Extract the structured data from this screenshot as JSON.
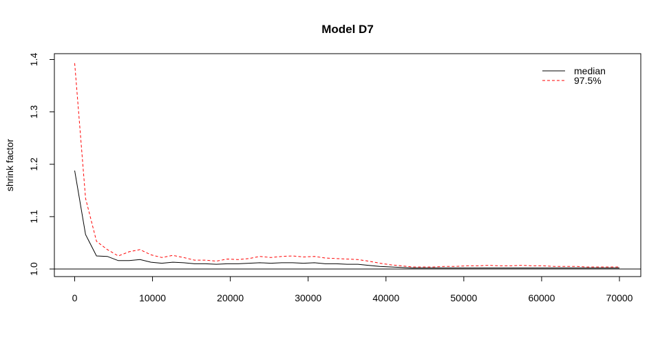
{
  "chart_data": {
    "type": "line",
    "title": "Model D7",
    "xlabel": "",
    "ylabel": "shrink factor",
    "xlim": [
      0,
      70000
    ],
    "ylim": [
      1.0,
      1.4
    ],
    "xticks": [
      0,
      10000,
      20000,
      30000,
      40000,
      50000,
      60000,
      70000
    ],
    "yticks": [
      1.0,
      1.1,
      1.2,
      1.3,
      1.4
    ],
    "xtick_labels": [
      "0",
      "10000",
      "20000",
      "30000",
      "40000",
      "50000",
      "60000",
      "70000"
    ],
    "ytick_labels": [
      "1.0",
      "1.1",
      "1.2",
      "1.3",
      "1.4"
    ],
    "reference_line": 1.0,
    "legend_position": "top-right",
    "grid": false,
    "series": [
      {
        "name": "median",
        "color": "#000000",
        "style": "solid",
        "x": [
          0,
          1400,
          2800,
          4200,
          5600,
          7000,
          8400,
          9800,
          11200,
          12600,
          14000,
          15400,
          16800,
          18200,
          19600,
          21000,
          22400,
          23800,
          25200,
          26600,
          28000,
          29400,
          30800,
          32200,
          33600,
          35000,
          36400,
          37800,
          39200,
          40600,
          42000,
          43400,
          44800,
          46200,
          47600,
          49000,
          50400,
          51800,
          53200,
          54600,
          56000,
          57400,
          58800,
          60200,
          61600,
          63000,
          64400,
          65800,
          67200,
          68600,
          70000
        ],
        "y": [
          1.188,
          1.066,
          1.025,
          1.024,
          1.016,
          1.016,
          1.018,
          1.013,
          1.011,
          1.013,
          1.012,
          1.01,
          1.01,
          1.009,
          1.01,
          1.01,
          1.011,
          1.012,
          1.011,
          1.012,
          1.012,
          1.011,
          1.012,
          1.01,
          1.01,
          1.009,
          1.009,
          1.007,
          1.005,
          1.004,
          1.003,
          1.002,
          1.002,
          1.002,
          1.002,
          1.002,
          1.002,
          1.002,
          1.002,
          1.002,
          1.002,
          1.002,
          1.002,
          1.002,
          1.002,
          1.002,
          1.002,
          1.002,
          1.002,
          1.002,
          1.002
        ]
      },
      {
        "name": "97.5%",
        "color": "#ff0000",
        "style": "dashed",
        "x": [
          0,
          1400,
          2800,
          4200,
          5600,
          7000,
          8400,
          9800,
          11200,
          12600,
          14000,
          15400,
          16800,
          18200,
          19600,
          21000,
          22400,
          23800,
          25200,
          26600,
          28000,
          29400,
          30800,
          32200,
          33600,
          35000,
          36400,
          37800,
          39200,
          40600,
          42000,
          43400,
          44800,
          46200,
          47600,
          49000,
          50400,
          51800,
          53200,
          54600,
          56000,
          57400,
          58800,
          60200,
          61600,
          63000,
          64400,
          65800,
          67200,
          68600,
          70000
        ],
        "y": [
          1.393,
          1.135,
          1.053,
          1.037,
          1.025,
          1.033,
          1.037,
          1.027,
          1.022,
          1.026,
          1.022,
          1.017,
          1.017,
          1.015,
          1.019,
          1.018,
          1.02,
          1.024,
          1.022,
          1.024,
          1.025,
          1.023,
          1.024,
          1.021,
          1.02,
          1.019,
          1.018,
          1.015,
          1.011,
          1.008,
          1.006,
          1.004,
          1.004,
          1.004,
          1.005,
          1.005,
          1.006,
          1.006,
          1.007,
          1.006,
          1.006,
          1.007,
          1.006,
          1.006,
          1.005,
          1.005,
          1.005,
          1.004,
          1.004,
          1.004,
          1.004
        ]
      }
    ]
  }
}
